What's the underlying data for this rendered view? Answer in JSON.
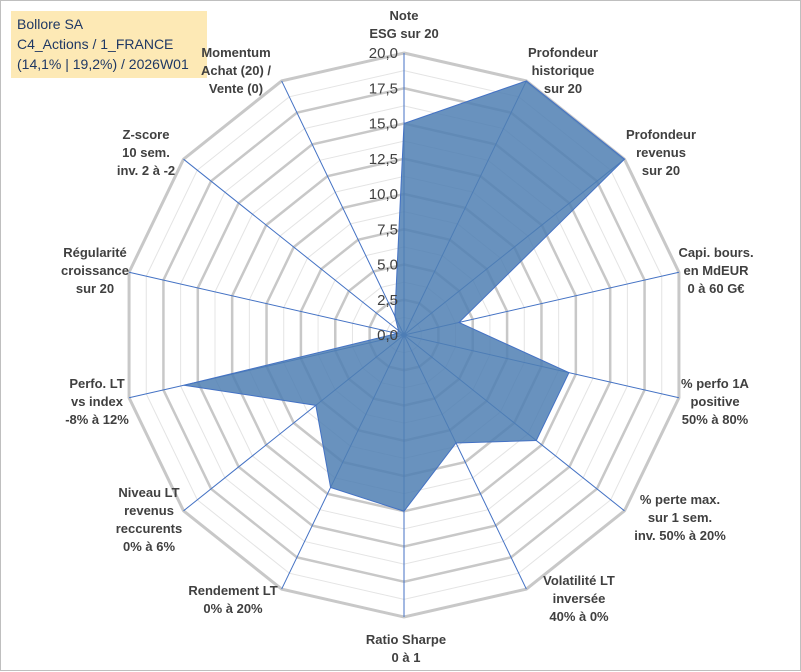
{
  "header": {
    "line1": "Bollore SA",
    "line2": "C4_Actions / 1_FRANCE",
    "line3": "(14,1% | 19,2%) / 2026W01"
  },
  "chart_data": {
    "type": "radar",
    "ylim": [
      0,
      20
    ],
    "grid": true,
    "tick_labels": [
      "0,0",
      "2,5",
      "5,0",
      "7,5",
      "10,0",
      "12,5",
      "15,0",
      "17,5",
      "20,0"
    ],
    "axes": [
      {
        "label": [
          "Note",
          "ESG sur 20"
        ],
        "value": 15.0
      },
      {
        "label": [
          "Profondeur",
          "historique",
          "sur 20"
        ],
        "value": 20.0
      },
      {
        "label": [
          "Profondeur",
          "revenus",
          "sur 20"
        ],
        "value": 20.0
      },
      {
        "label": [
          "Capi. bours.",
          "en MdEUR",
          "0 à 60 G€"
        ],
        "value": 4.0
      },
      {
        "label": [
          "% perfo 1A",
          "positive",
          "50% à 80%"
        ],
        "value": 12.0
      },
      {
        "label": [
          "% perte max.",
          "sur 1 sem.",
          "inv. 50% à 20%"
        ],
        "value": 12.0
      },
      {
        "label": [
          "Volatilité LT",
          "inversée",
          "40% à 0%"
        ],
        "value": 8.5
      },
      {
        "label": [
          "Ratio Sharpe",
          "0 à 1"
        ],
        "value": 12.5
      },
      {
        "label": [
          "Rendement LT",
          "0% à 20%"
        ],
        "value": 12.0
      },
      {
        "label": [
          "Niveau LT",
          "revenus",
          "reccurents",
          "0% à 6%"
        ],
        "value": 8.0
      },
      {
        "label": [
          "Perfo. LT",
          "vs index",
          "-8% à 12%"
        ],
        "value": 16.0
      },
      {
        "label": [
          "Régularité",
          "croissance",
          "sur 20"
        ],
        "value": 0.5
      },
      {
        "label": [
          "Z-score",
          "10 sem.",
          "inv. 2 à -2"
        ],
        "value": 0.5
      },
      {
        "label": [
          "Momentum",
          "Achat (20) /",
          "Vente (0)"
        ],
        "value": 1.5
      }
    ],
    "colors": {
      "fill": "#4f7fb3",
      "stroke": "#4472c4",
      "grid": "#c8c8c8",
      "spoke": "#4472c4"
    }
  }
}
